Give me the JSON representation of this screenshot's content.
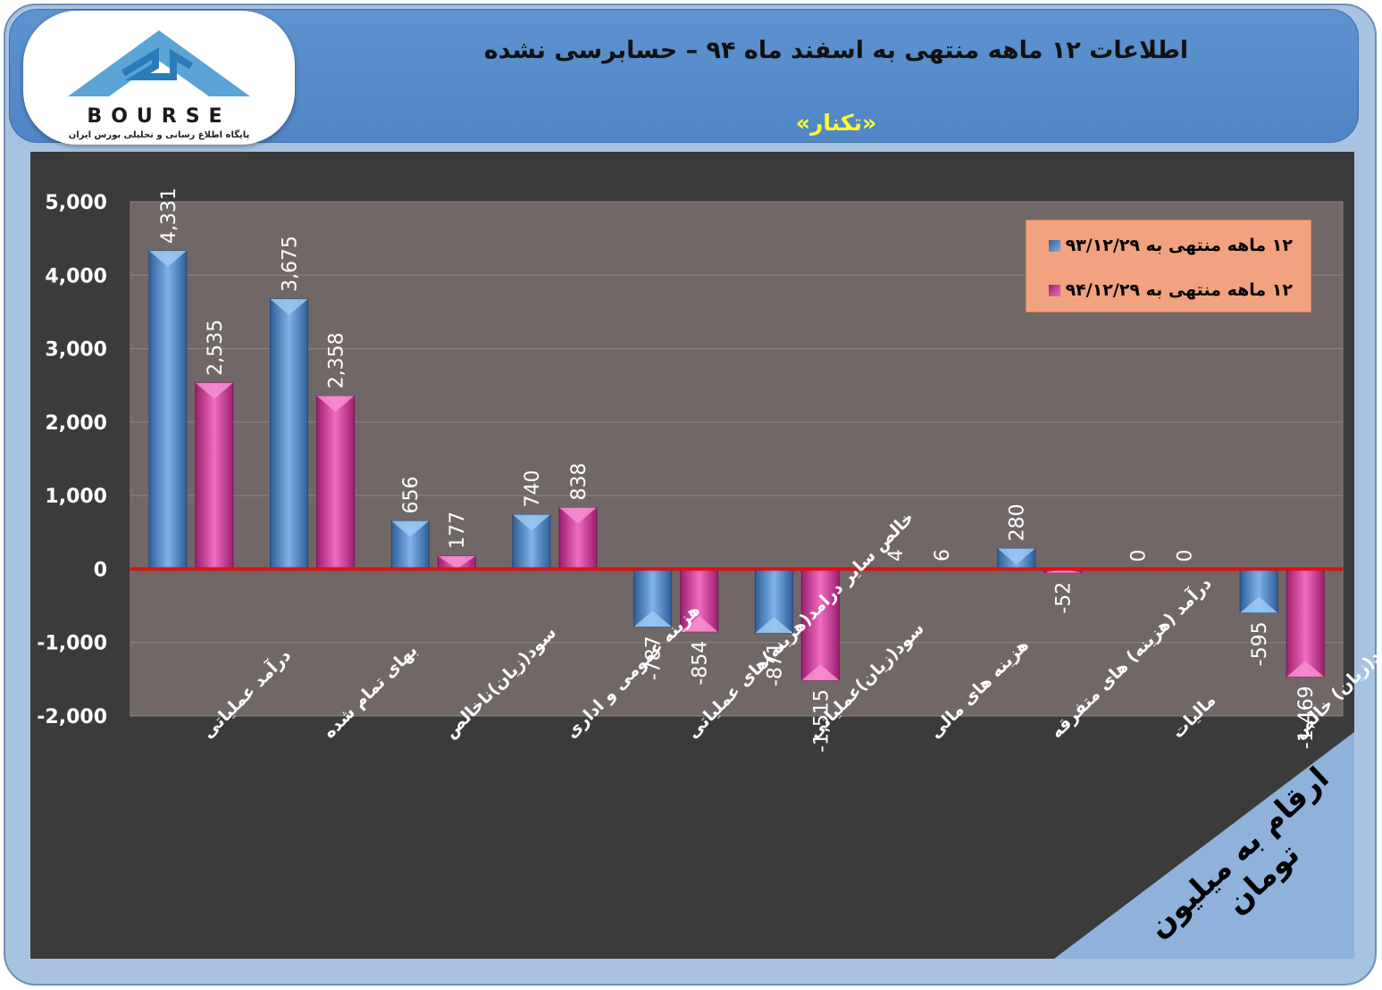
{
  "header": {
    "title": "اطلاعات ۱۲  ماهه منتهی به اسفند ماه ۹۴ – حسابرسی نشده",
    "subtitle": "«تکنار»"
  },
  "logo": {
    "name": "BOURSE",
    "tagline": "پایگاه اطلاع رسانی و تحلیلی بورس ایران"
  },
  "unit_note": "ارقام به میلیون تومان",
  "colors": {
    "series1": "#4f86c6",
    "series2": "#d63c9c",
    "zero_line": "#e01010",
    "plot_bg": "#716767",
    "legend_bg": "#f2a27e"
  },
  "chart_data": {
    "type": "bar",
    "categories": [
      "درآمد عملیاتی",
      "بهای تمام شده",
      "سود(زیان)ناخالص",
      "هزینه عمومی و اداری",
      "خالص سایر درامد(هزینه)های عملیاتی",
      "سود(زیان)عملیاتی",
      "هزینه های مالی",
      "درآمد (هزینه) های متفرقه",
      "مالیات",
      "سود(زیان) خالص"
    ],
    "series": [
      {
        "name": "۱۲ ماهه منتهی به ۹۳/۱۲/۲۹",
        "values": [
          4331,
          3675,
          656,
          740,
          -787,
          -871,
          4,
          280,
          0,
          -595
        ]
      },
      {
        "name": "۱۲ ماهه منتهی به ۹۴/۱۲/۲۹",
        "values": [
          2535,
          2358,
          177,
          838,
          -854,
          -1515,
          6,
          -52,
          0,
          -1469
        ]
      }
    ],
    "value_labels": [
      [
        "4,331",
        "3,675",
        "656",
        "740",
        "-787",
        "-871",
        "4",
        "280",
        "0",
        "-595"
      ],
      [
        "2,535",
        "2,358",
        "177",
        "838",
        "-854",
        "-1,515",
        "6",
        "-52",
        "0",
        "-1,469"
      ]
    ],
    "yticks": [
      "5,000",
      "4,000",
      "3,000",
      "2,000",
      "1,000",
      "0",
      "-1,000",
      "-2,000"
    ],
    "ytick_values": [
      5000,
      4000,
      3000,
      2000,
      1000,
      0,
      -1000,
      -2000
    ],
    "ylim": [
      -2000,
      5000
    ],
    "legend_position": "top-right",
    "grid": true
  }
}
